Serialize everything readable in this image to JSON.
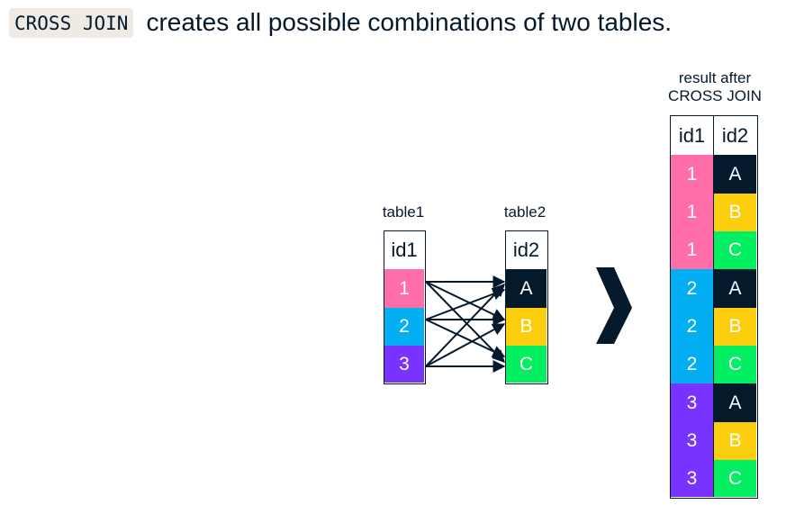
{
  "headline": {
    "code": "CROSS JOIN",
    "text": "creates all possible combinations of two tables."
  },
  "table1": {
    "caption": "table1",
    "header": "id1",
    "rows": [
      "1",
      "2",
      "3"
    ]
  },
  "table2": {
    "caption": "table2",
    "header": "id2",
    "rows": [
      "A",
      "B",
      "C"
    ]
  },
  "result": {
    "caption_line1": "result after",
    "caption_line2": "CROSS JOIN",
    "headers": [
      "id1",
      "id2"
    ],
    "rows": [
      [
        "1",
        "A"
      ],
      [
        "1",
        "B"
      ],
      [
        "1",
        "C"
      ],
      [
        "2",
        "A"
      ],
      [
        "2",
        "B"
      ],
      [
        "2",
        "C"
      ],
      [
        "3",
        "A"
      ],
      [
        "3",
        "B"
      ],
      [
        "3",
        "C"
      ]
    ]
  },
  "colors": {
    "dark": "#05192d",
    "id1": {
      "1": "#ff6ea9",
      "2": "#03aff2",
      "3": "#7933ff"
    },
    "id2": {
      "A": "#05192d",
      "B": "#fcce0d",
      "C": "#03ef62"
    }
  },
  "icons": {
    "transition": "chevron-right-icon"
  }
}
